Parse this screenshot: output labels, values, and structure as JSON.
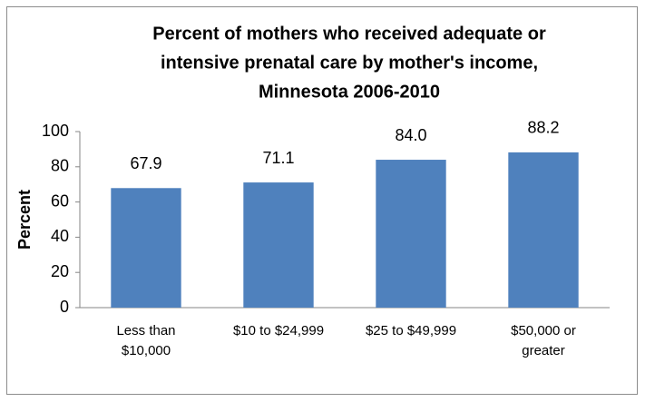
{
  "chart_data": {
    "type": "bar",
    "title": [
      "Percent of mothers who received adequate or",
      "intensive prenatal care by mother's income,",
      "Minnesota 2006-2010"
    ],
    "ylabel": "Percent",
    "categories": [
      "Less than $10,000",
      "$10 to $24,999",
      "$25 to $49,999",
      "$50,000 or greater"
    ],
    "values": [
      67.9,
      71.1,
      84.0,
      88.2
    ],
    "value_labels": [
      "67.9",
      "71.1",
      "84.0",
      "88.2"
    ],
    "color": "#4f81bd",
    "ylim": [
      0,
      100
    ],
    "yticks": [
      0,
      20,
      40,
      60,
      80,
      100
    ],
    "grid": false
  }
}
